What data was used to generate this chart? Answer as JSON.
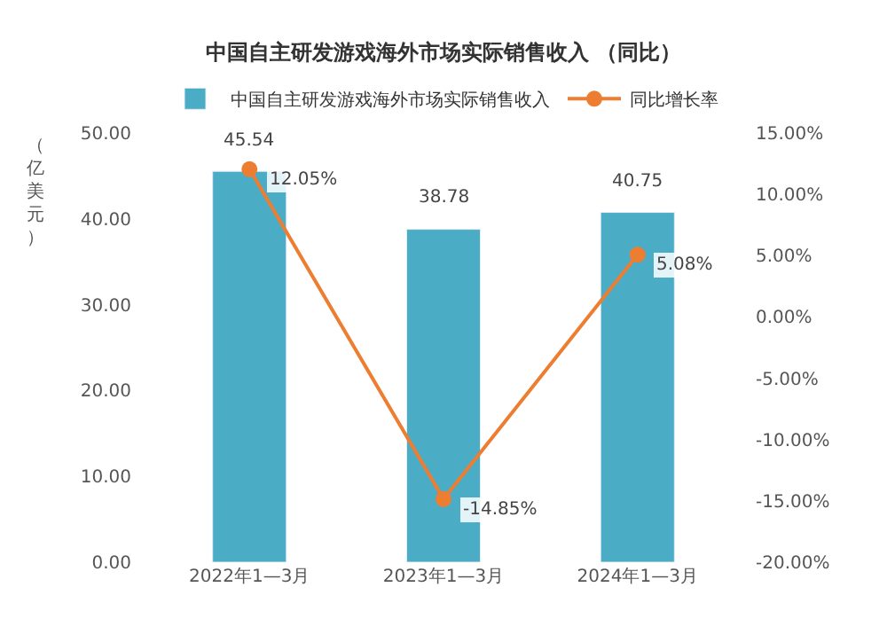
{
  "chart_data": {
    "type": "bar",
    "title": "中国自主研发游戏海外市场实际销售收入 （同比）",
    "ylabel": "（亿美元）",
    "categories": [
      "2022年1—3月",
      "2023年1—3月",
      "2024年1—3月"
    ],
    "series": [
      {
        "name": "中国自主研发游戏海外市场实际销售收入",
        "color": "#4bacc6",
        "values": [
          45.54,
          38.78,
          40.75
        ],
        "value_labels": [
          "45.54",
          "38.78",
          "40.75"
        ]
      },
      {
        "name": "同比增长率",
        "type": "line",
        "axis": "y2",
        "color": "#ed7d31",
        "values": [
          12.05,
          -14.85,
          5.08
        ],
        "value_labels": [
          "12.05%",
          "-14.85%",
          "5.08%"
        ]
      }
    ],
    "ylim": [
      0,
      50
    ],
    "yticks": [
      {
        "value": 0,
        "label": "0.00"
      },
      {
        "value": 10,
        "label": "10.00"
      },
      {
        "value": 20,
        "label": "20.00"
      },
      {
        "value": 30,
        "label": "30.00"
      },
      {
        "value": 40,
        "label": "40.00"
      },
      {
        "value": 50,
        "label": "50.00"
      }
    ],
    "y2lim": [
      -20,
      15
    ],
    "y2ticks": [
      {
        "value": -20,
        "label": "-20.00%"
      },
      {
        "value": -15,
        "label": "-15.00%"
      },
      {
        "value": -10,
        "label": "-10.00%"
      },
      {
        "value": -5,
        "label": "-5.00%"
      },
      {
        "value": 0,
        "label": "0.00%"
      },
      {
        "value": 5,
        "label": "5.00%"
      },
      {
        "value": 10,
        "label": "10.00%"
      },
      {
        "value": 15,
        "label": "15.00%"
      }
    ],
    "legend": "top",
    "marker": "circle"
  }
}
